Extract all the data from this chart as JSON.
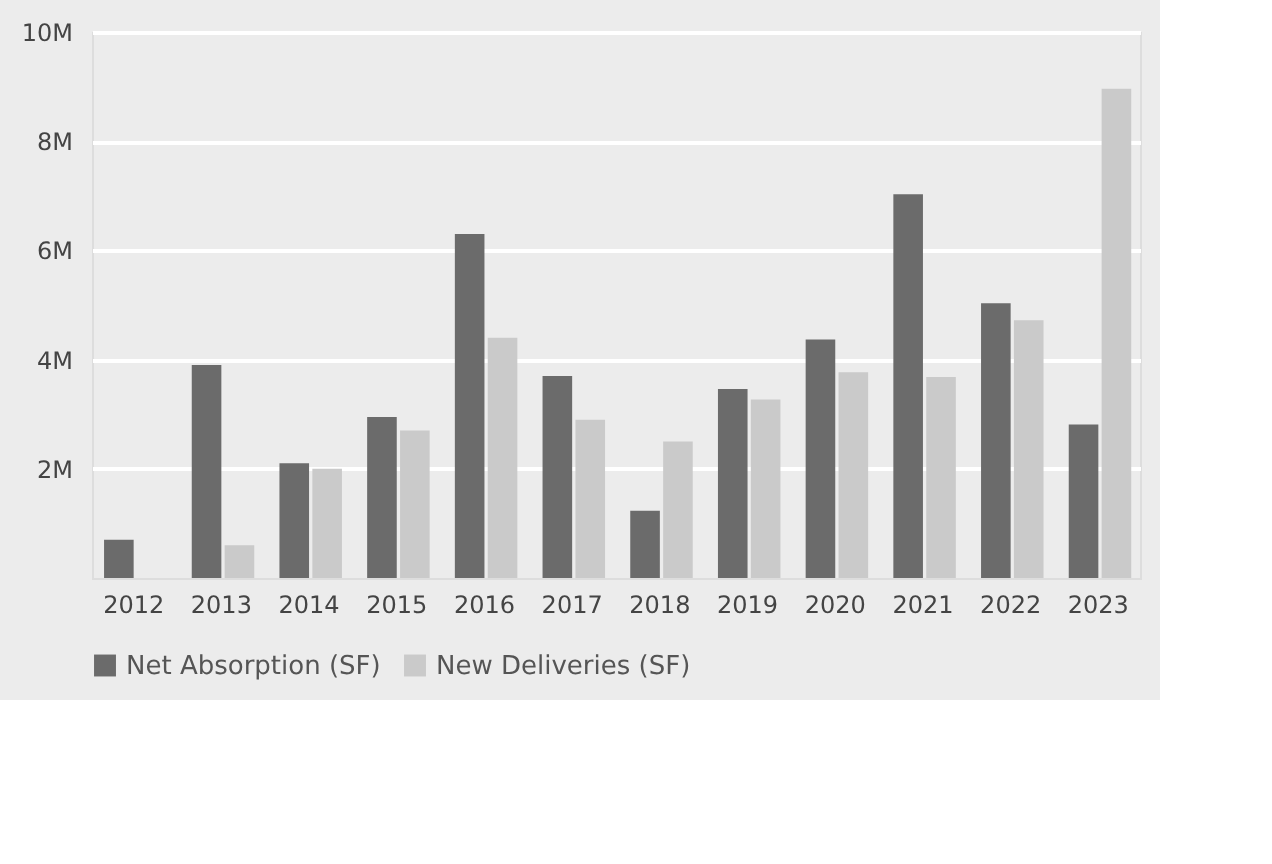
{
  "chart_data": {
    "type": "bar",
    "categories": [
      "2012",
      "2013",
      "2014",
      "2015",
      "2016",
      "2017",
      "2018",
      "2019",
      "2020",
      "2021",
      "2022",
      "2023"
    ],
    "series": [
      {
        "name": "Net Absorption (SF)",
        "color": "#6b6b6b",
        "values": [
          700000,
          3900000,
          2100000,
          2950000,
          6300000,
          3700000,
          1230000,
          3460000,
          4370000,
          7030000,
          5030000,
          2810000
        ]
      },
      {
        "name": "New Deliveries (SF)",
        "color": "#cacaca",
        "values": [
          0,
          600000,
          2000000,
          2700000,
          4400000,
          2900000,
          2500000,
          3270000,
          3770000,
          3680000,
          4720000,
          8960000
        ]
      }
    ],
    "ylim": [
      0,
      10000000
    ],
    "yticks": [
      {
        "value": 2000000,
        "label": "2M"
      },
      {
        "value": 4000000,
        "label": "4M"
      },
      {
        "value": 6000000,
        "label": "6M"
      },
      {
        "value": 8000000,
        "label": "8M"
      },
      {
        "value": 10000000,
        "label": "10M"
      }
    ],
    "grid": "y",
    "legend": "bottom"
  }
}
